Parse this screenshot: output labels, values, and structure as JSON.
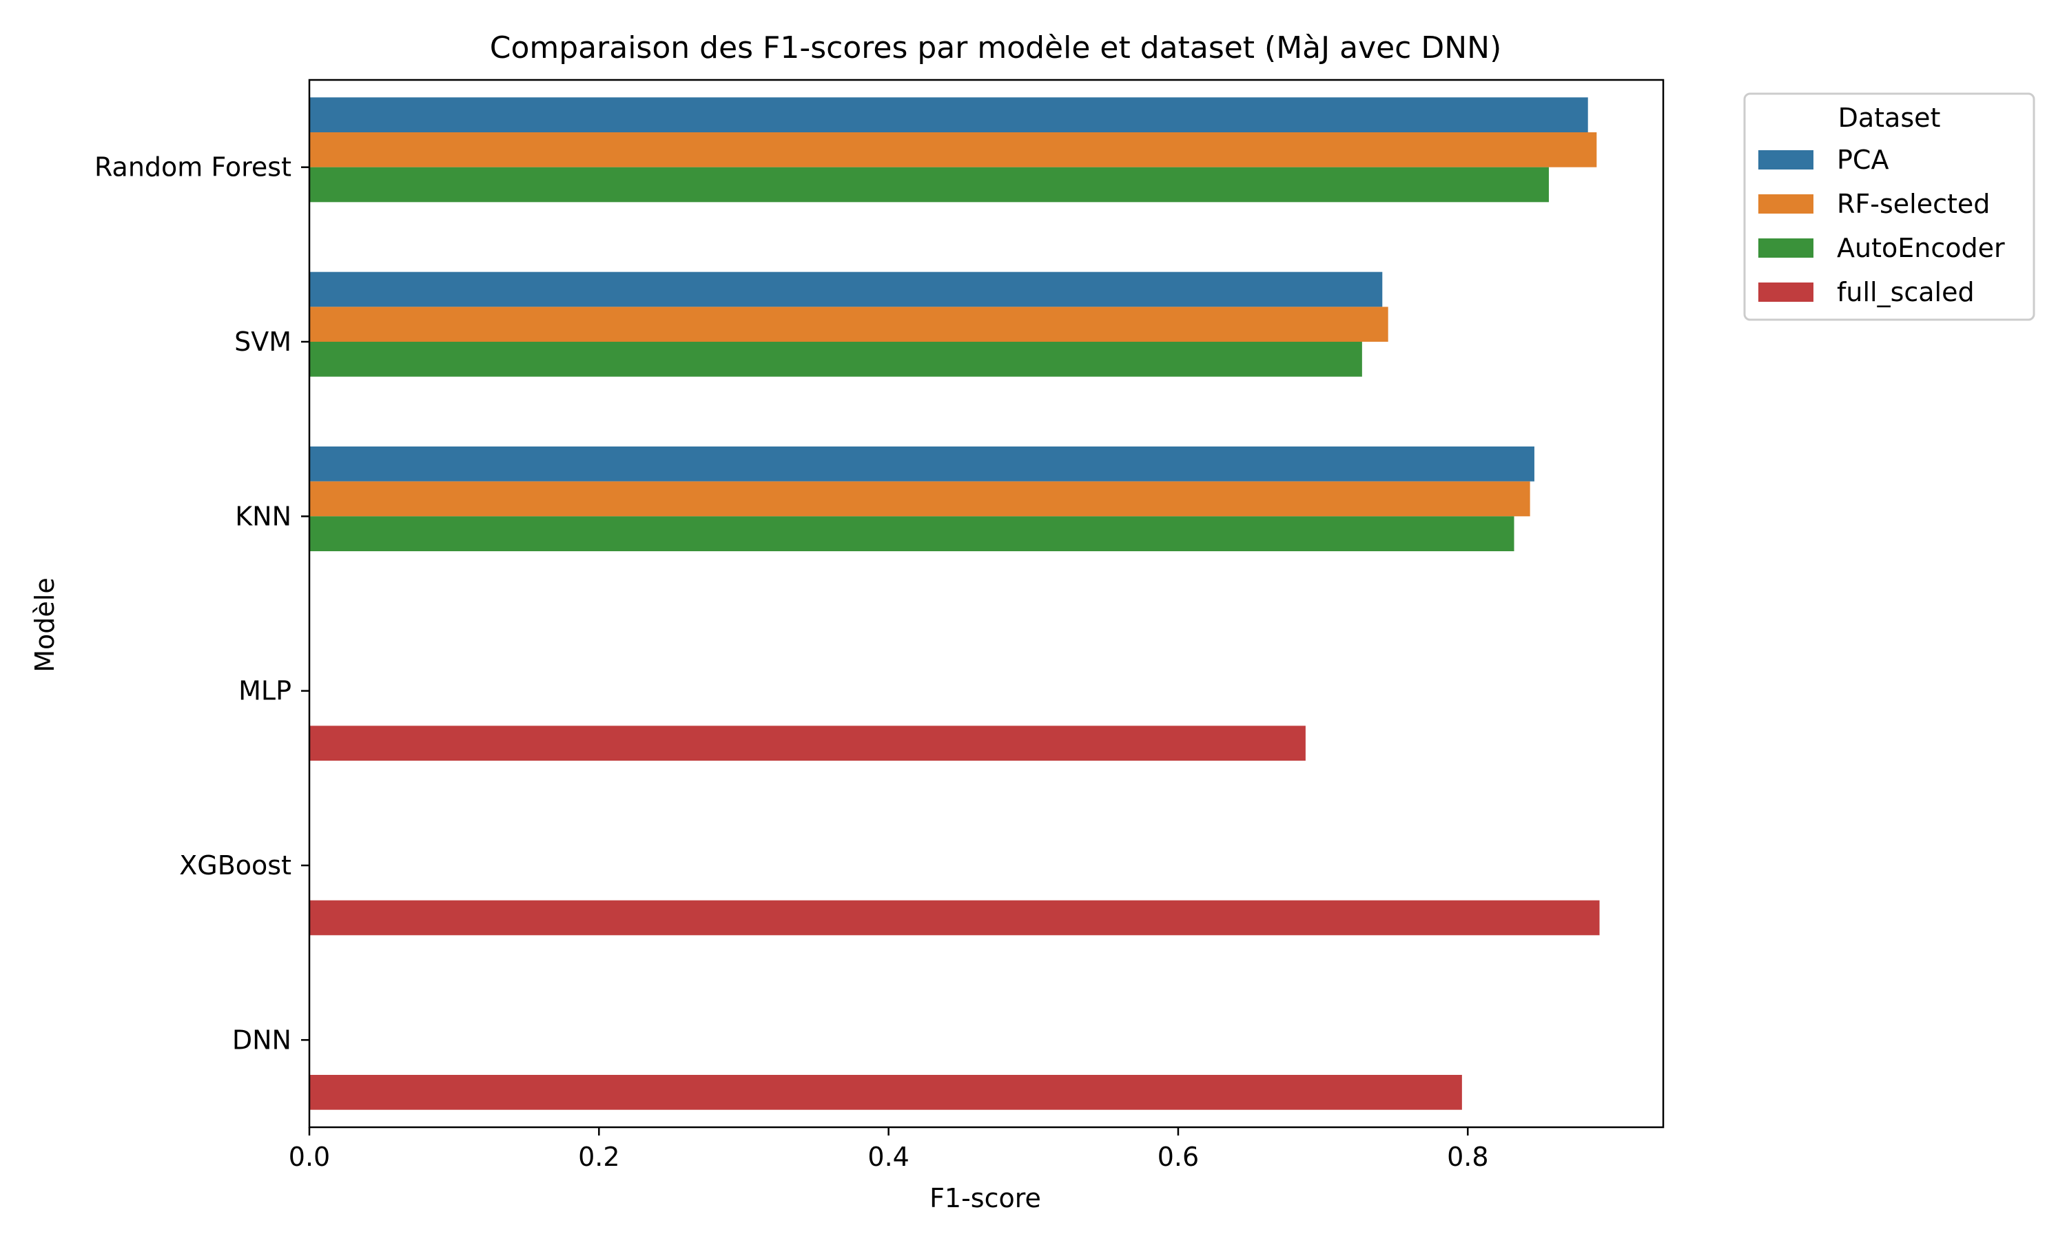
{
  "chart_data": {
    "type": "bar",
    "orientation": "horizontal",
    "title": "Comparaison des F1-scores par modèle et dataset (MàJ avec DNN)",
    "xlabel": "F1-score",
    "ylabel": "Modèle",
    "xlim": [
      0,
      0.935
    ],
    "xticks": [
      0.0,
      0.2,
      0.4,
      0.6,
      0.8
    ],
    "xtick_labels": [
      "0.0",
      "0.2",
      "0.4",
      "0.6",
      "0.8"
    ],
    "grid": false,
    "legend": {
      "title": "Dataset",
      "placement": "outside-top-right"
    },
    "categories": [
      "Random Forest",
      "SVM",
      "KNN",
      "MLP",
      "XGBoost",
      "DNN"
    ],
    "series": [
      {
        "name": "PCA",
        "color": "#3274a1",
        "values": [
          0.883,
          0.741,
          0.846,
          null,
          null,
          null
        ]
      },
      {
        "name": "RF-selected",
        "color": "#e1812c",
        "values": [
          0.889,
          0.745,
          0.843,
          null,
          null,
          null
        ]
      },
      {
        "name": "AutoEncoder",
        "color": "#3a923a",
        "values": [
          0.856,
          0.727,
          0.832,
          null,
          null,
          null
        ]
      },
      {
        "name": "full_scaled",
        "color": "#c03d3e",
        "values": [
          null,
          null,
          null,
          0.688,
          0.891,
          0.796
        ]
      }
    ]
  }
}
